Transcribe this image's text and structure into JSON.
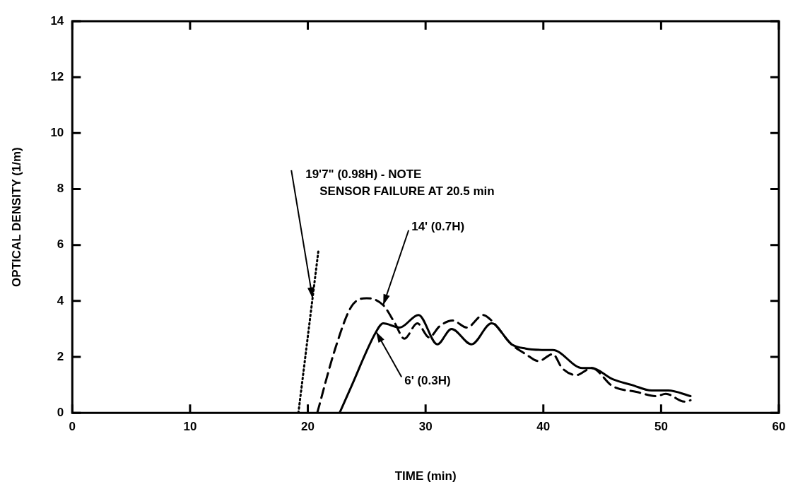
{
  "chart_data": {
    "type": "line",
    "xlabel": "TIME (min)",
    "ylabel": "OPTICAL DENSITY (1/m)",
    "xlim": [
      0,
      60
    ],
    "xticks": [
      0,
      10,
      20,
      30,
      40,
      50,
      60
    ],
    "ylim": [
      0,
      14
    ],
    "yticks": [
      0,
      2,
      4,
      6,
      8,
      10,
      12,
      14
    ],
    "grid": false,
    "legend": false,
    "marker": "none",
    "series": [
      {
        "color": "#000000",
        "line_style": "dotted",
        "x": [
          19.2,
          20.9
        ],
        "values": [
          0,
          5.8
        ]
      },
      {
        "color": "#000000",
        "line_style": "dashed",
        "x": [
          20.8,
          22.3,
          23.7,
          25.0,
          26.4,
          27.4,
          28.2,
          29.3,
          30.3,
          31.2,
          32.3,
          33.5,
          34.9,
          35.6,
          37.3,
          38.5,
          39.6,
          40.8,
          41.6,
          42.8,
          44.1,
          45.9,
          47.9,
          49.6,
          50.4,
          52,
          52.5
        ],
        "values": [
          0,
          2.26,
          3.8,
          4.1,
          3.85,
          3.2,
          2.65,
          3.2,
          2.7,
          3.1,
          3.3,
          3.05,
          3.5,
          3.3,
          2.45,
          2.1,
          1.85,
          2.1,
          1.6,
          1.35,
          1.6,
          0.95,
          0.75,
          0.6,
          0.68,
          0.4,
          0.45
        ]
      },
      {
        "color": "#000000",
        "line_style": "solid",
        "x": [
          22.7,
          23.7,
          25.8,
          26.4,
          27.8,
          29.4,
          31,
          32.2,
          33.9,
          35.6,
          37.3,
          38.5,
          40.2,
          40.8,
          43.3,
          44.1,
          45.9,
          47.5,
          49.2,
          50.6,
          52.5
        ],
        "values": [
          0,
          0.95,
          2.9,
          3.2,
          3.05,
          3.5,
          2.45,
          3.0,
          2.45,
          3.2,
          2.45,
          2.3,
          2.25,
          2.25,
          1.6,
          1.6,
          1.2,
          1.0,
          0.8,
          0.8,
          0.6
        ]
      }
    ],
    "annotations": [
      {
        "text": "19'7\" (0.98H) - NOTE\nSENSOR FAILURE AT 20.5 min",
        "x": 20.4,
        "y": 4.1
      },
      {
        "text": "14' (0.7H)",
        "x": 26.4,
        "y": 3.85
      },
      {
        "text": "6' (0.3H)",
        "x": 25.8,
        "y": 2.9
      }
    ]
  }
}
